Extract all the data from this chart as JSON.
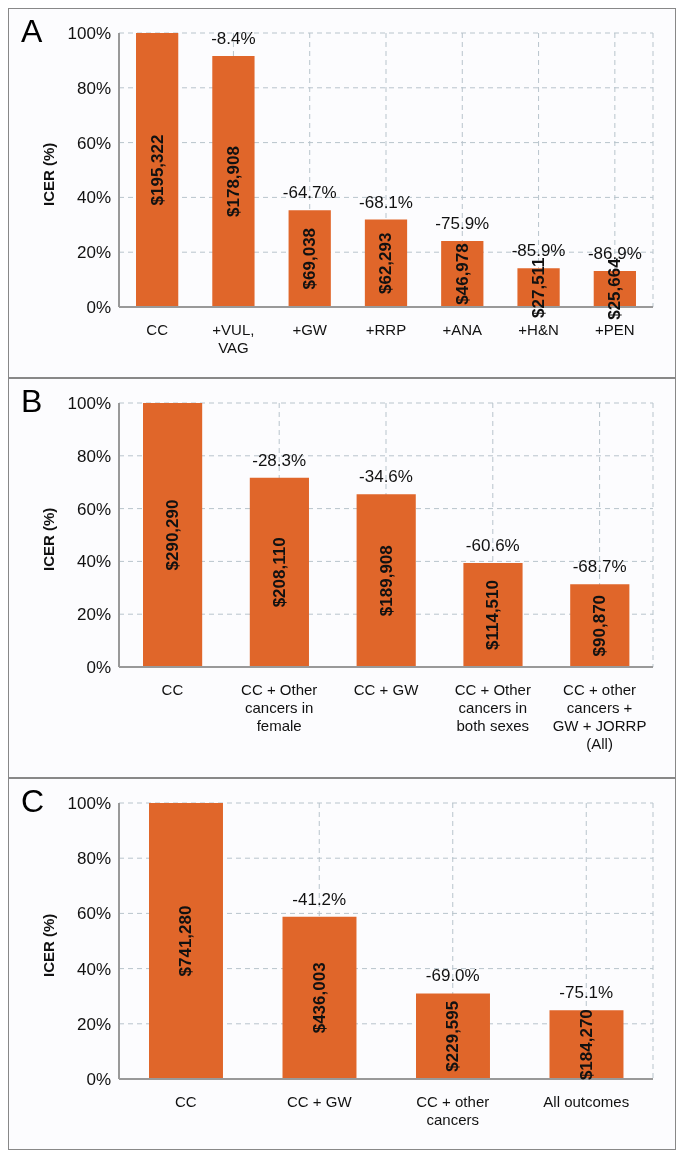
{
  "chart_data": [
    {
      "type": "bar",
      "title": "A",
      "ylabel": "ICER (%)",
      "categories": [
        "CC",
        "+VUL, VAG",
        "+GW",
        "+RRP",
        "+ANA",
        "+H&N",
        "+PEN"
      ],
      "values": [
        100,
        91.6,
        35.3,
        31.9,
        24.1,
        14.1,
        13.1
      ],
      "color": "#e0662a",
      "legend": false,
      "annotations": [
        "$195,322",
        "$178,908",
        "$69,038",
        "$62,293",
        "$46,978",
        "$27,511",
        "$25,664",
        {
          "text": "-8.4%",
          "x": "+VUL, VAG",
          "y": 91.6
        },
        {
          "text": "-64.7%",
          "x": "+GW",
          "y": 35.3
        },
        {
          "text": "-68.1%",
          "x": "+RRP",
          "y": 31.9
        },
        {
          "text": "-75.9%",
          "x": "+ANA",
          "y": 24.1
        },
        {
          "text": "-85.9%",
          "x": "+H&N",
          "y": 14.1
        },
        {
          "text": "-86.9%",
          "x": "+PEN",
          "y": 13.1
        }
      ],
      "ylim": [
        0,
        100
      ],
      "yticks": [
        {
          "value": 0,
          "label": "0%"
        },
        {
          "value": 20,
          "label": "20%"
        },
        {
          "value": 40,
          "label": "40%"
        },
        {
          "value": 60,
          "label": "60%"
        },
        {
          "value": 80,
          "label": "80%"
        },
        {
          "value": 100,
          "label": "100%"
        }
      ],
      "grid": true
    },
    {
      "type": "bar",
      "title": "B",
      "ylabel": "ICER (%)",
      "categories": [
        "CC",
        "CC + Other cancers in female",
        "CC + GW",
        "CC + Other cancers in both sexes",
        "CC + other cancers + GW + JORRP (All)"
      ],
      "values": [
        100,
        71.7,
        65.4,
        39.4,
        31.3
      ],
      "color": "#e0662a",
      "legend": false,
      "annotations": [
        "$290,290",
        "$208,110",
        "$189,908",
        "$114,510",
        "$90,870",
        {
          "text": "-28.3%",
          "x": "CC + Other cancers in female",
          "y": 71.7
        },
        {
          "text": "-34.6%",
          "x": "CC + GW",
          "y": 65.4
        },
        {
          "text": "-60.6%",
          "x": "CC + Other cancers in both sexes",
          "y": 39.4
        },
        {
          "text": "-68.7%",
          "x": "CC + other cancers + GW + JORRP (All)",
          "y": 31.3
        }
      ],
      "ylim": [
        0,
        100
      ],
      "yticks": [
        {
          "value": 0,
          "label": "0%"
        },
        {
          "value": 20,
          "label": "20%"
        },
        {
          "value": 40,
          "label": "40%"
        },
        {
          "value": 60,
          "label": "60%"
        },
        {
          "value": 80,
          "label": "80%"
        },
        {
          "value": 100,
          "label": "100%"
        }
      ],
      "grid": true
    },
    {
      "type": "bar",
      "title": "C",
      "ylabel": "ICER (%)",
      "categories": [
        "CC",
        "CC + GW",
        "CC + other cancers",
        "All outcomes"
      ],
      "values": [
        100,
        58.8,
        31.0,
        24.9
      ],
      "color": "#e0662a",
      "legend": false,
      "annotations": [
        "$741,280",
        "$436,003",
        "$229,595",
        "$184,270",
        {
          "text": "-41.2%",
          "x": "CC + GW",
          "y": 58.8
        },
        {
          "text": "-69.0%",
          "x": "CC + other cancers",
          "y": 31.0
        },
        {
          "text": "-75.1%",
          "x": "All outcomes",
          "y": 24.9
        }
      ],
      "ylim": [
        0,
        100
      ],
      "yticks": [
        {
          "value": 0,
          "label": "0%"
        },
        {
          "value": 20,
          "label": "20%"
        },
        {
          "value": 40,
          "label": "40%"
        },
        {
          "value": 60,
          "label": "60%"
        },
        {
          "value": 80,
          "label": "80%"
        },
        {
          "value": 100,
          "label": "100%"
        }
      ],
      "grid": true
    }
  ]
}
